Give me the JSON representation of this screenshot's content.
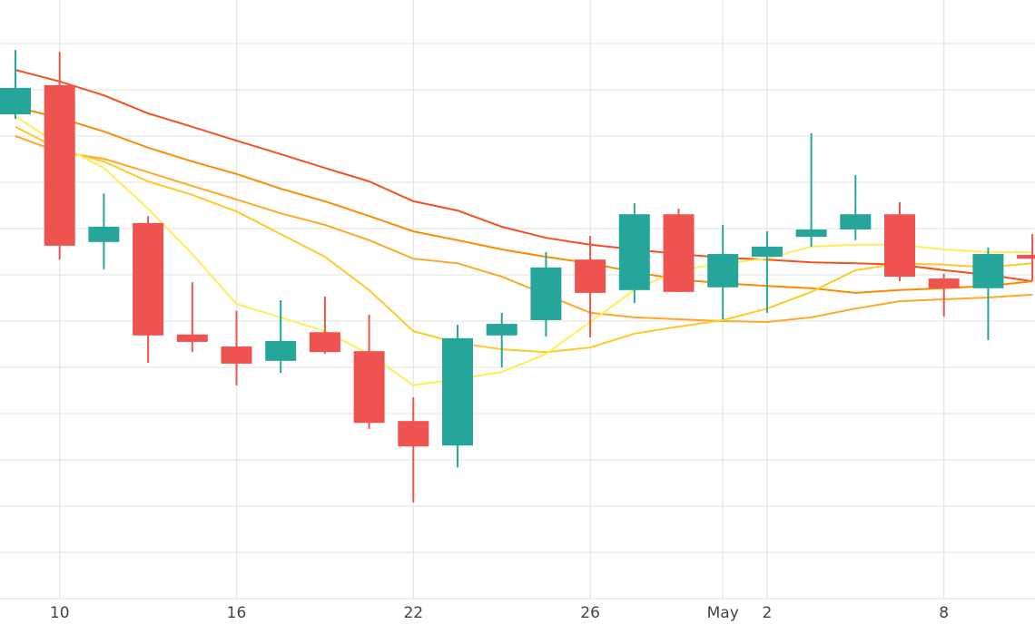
{
  "chart_data": {
    "type": "candlestick",
    "categories": [
      null,
      "10",
      null,
      null,
      null,
      "16",
      null,
      null,
      null,
      "22",
      null,
      null,
      null,
      "26",
      null,
      null,
      "May",
      "2",
      null,
      null,
      null,
      "8",
      null,
      null
    ],
    "open": [
      10.47,
      11.1,
      7.71,
      8.12,
      5.71,
      5.45,
      5.14,
      5.76,
      5.35,
      3.84,
      3.31,
      5.69,
      6.02,
      7.33,
      6.67,
      8.31,
      6.73,
      7.39,
      7.82,
      7.98,
      8.31,
      6.92,
      6.71,
      7.43
    ],
    "high": [
      11.86,
      11.82,
      8.76,
      8.27,
      6.84,
      6.22,
      6.45,
      6.53,
      6.14,
      4.35,
      5.92,
      6.18,
      7.49,
      7.84,
      8.55,
      8.43,
      8.08,
      7.94,
      10.06,
      9.16,
      8.57,
      7.02,
      7.59,
      7.88
    ],
    "low": [
      10.37,
      7.33,
      7.12,
      5.1,
      5.33,
      4.61,
      4.88,
      5.29,
      3.67,
      2.08,
      2.84,
      5.0,
      5.67,
      5.65,
      6.39,
      6.63,
      6.04,
      6.18,
      7.61,
      7.75,
      6.86,
      6.1,
      5.59,
      6.86
    ],
    "close": [
      11.04,
      7.63,
      8.04,
      5.69,
      5.55,
      5.08,
      5.57,
      5.33,
      3.8,
      3.29,
      5.63,
      5.94,
      7.16,
      6.61,
      8.31,
      6.63,
      7.45,
      7.61,
      7.98,
      8.31,
      6.96,
      6.71,
      7.45,
      7.35
    ],
    "up_color": "#26a69a",
    "down_color": "#ef5350",
    "overlays": [
      {
        "color": "#f4511e",
        "values": [
          11.43,
          11.18,
          10.88,
          10.49,
          10.2,
          9.9,
          9.61,
          9.31,
          9.02,
          8.59,
          8.39,
          8.04,
          7.8,
          7.65,
          7.55,
          7.45,
          7.37,
          7.33,
          7.27,
          7.25,
          7.22,
          7.1,
          7.0,
          6.86
        ]
      },
      {
        "color": "#fb8c00",
        "values": [
          10.63,
          10.39,
          10.1,
          9.75,
          9.45,
          9.18,
          8.86,
          8.59,
          8.27,
          7.94,
          7.75,
          7.55,
          7.39,
          7.25,
          7.06,
          6.9,
          6.82,
          6.76,
          6.71,
          6.61,
          6.67,
          6.71,
          6.76,
          6.86
        ]
      },
      {
        "color": "#ffa726",
        "values": [
          10.0,
          9.65,
          9.51,
          9.22,
          8.92,
          8.63,
          8.33,
          8.08,
          7.75,
          7.35,
          7.25,
          6.96,
          6.57,
          6.18,
          6.08,
          6.04,
          6.0,
          5.98,
          6.08,
          6.27,
          6.43,
          6.47,
          6.51,
          6.57
        ]
      },
      {
        "color": "#ffca28",
        "values": [
          10.2,
          9.71,
          9.45,
          9.02,
          8.73,
          8.37,
          7.88,
          7.39,
          6.67,
          5.78,
          5.53,
          5.39,
          5.33,
          5.43,
          5.73,
          5.88,
          6.02,
          6.27,
          6.63,
          7.1,
          7.25,
          7.22,
          7.16,
          7.25
        ]
      },
      {
        "color": "#ffee58",
        "values": [
          10.43,
          9.8,
          9.31,
          8.43,
          7.45,
          6.37,
          6.08,
          5.78,
          5.29,
          4.61,
          4.75,
          4.9,
          5.29,
          5.98,
          6.67,
          7.1,
          7.25,
          7.35,
          7.61,
          7.65,
          7.65,
          7.55,
          7.49,
          7.49
        ]
      }
    ],
    "ylim": [
      0,
      13
    ],
    "yticks": [
      0,
      1,
      2,
      3,
      4,
      5,
      6,
      7,
      8,
      9,
      10,
      11,
      12
    ],
    "ytick_labels_shown": false,
    "grid": true
  }
}
